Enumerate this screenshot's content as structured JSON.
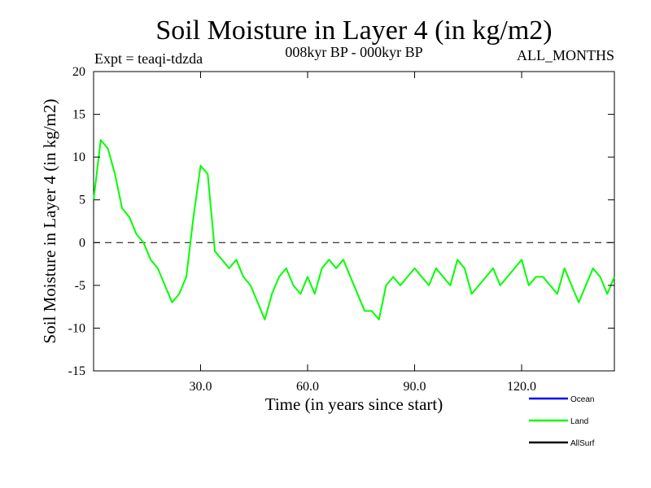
{
  "chart_data": {
    "type": "line",
    "title": "Soil Moisture in Layer 4 (in kg/m2)",
    "subtitle_left": "Expt = teaqi-tdzda",
    "subtitle_center": "008kyr BP - 000kyr BP",
    "subtitle_right": "ALL_MONTHS",
    "xlabel": "Time (in years since start)",
    "ylabel": "Soil Moisture in Layer 4 (in kg/m2)",
    "xlim": [
      0,
      146
    ],
    "ylim": [
      -15,
      20
    ],
    "x_ticks": [
      30,
      60,
      90,
      120
    ],
    "x_tick_labels": [
      "30.0",
      "60.0",
      "90.0",
      "120.0"
    ],
    "y_ticks": [
      -15,
      -10,
      -5,
      0,
      5,
      10,
      15,
      20
    ],
    "y_tick_labels": [
      "-15",
      "-10",
      "-5",
      "0",
      "5",
      "10",
      "15",
      "20"
    ],
    "reference_line": 0,
    "legend": [
      {
        "name": "Ocean",
        "color": "#0000ff"
      },
      {
        "name": "Land",
        "color": "#00ff00"
      },
      {
        "name": "AllSurf",
        "color": "#000000"
      }
    ],
    "series": [
      {
        "name": "Land",
        "color": "#00ff00",
        "x": [
          0,
          2,
          4,
          6,
          8,
          10,
          12,
          14,
          16,
          18,
          20,
          22,
          24,
          26,
          28,
          30,
          32,
          34,
          36,
          38,
          40,
          42,
          44,
          46,
          48,
          50,
          52,
          54,
          56,
          58,
          60,
          62,
          64,
          66,
          68,
          70,
          72,
          74,
          76,
          78,
          80,
          82,
          84,
          86,
          88,
          90,
          92,
          94,
          96,
          98,
          100,
          102,
          104,
          106,
          108,
          110,
          112,
          114,
          116,
          118,
          120,
          122,
          124,
          126,
          128,
          130,
          132,
          134,
          136,
          138,
          140,
          142,
          144,
          146
        ],
        "values": [
          5,
          12,
          11,
          8,
          4,
          3,
          1,
          0,
          -2,
          -3,
          -5,
          -7,
          -6,
          -4,
          3,
          9,
          8,
          -1,
          -2,
          -3,
          -2,
          -4,
          -5,
          -7,
          -9,
          -6,
          -4,
          -3,
          -5,
          -6,
          -4,
          -6,
          -3,
          -2,
          -3,
          -2,
          -4,
          -6,
          -8,
          -8,
          -9,
          -5,
          -4,
          -5,
          -4,
          -3,
          -4,
          -5,
          -3,
          -4,
          -5,
          -2,
          -3,
          -6,
          -5,
          -4,
          -3,
          -5,
          -4,
          -3,
          -2,
          -5,
          -4,
          -4,
          -5,
          -6,
          -3,
          -5,
          -7,
          -5,
          -3,
          -4,
          -6,
          -4
        ]
      }
    ]
  }
}
